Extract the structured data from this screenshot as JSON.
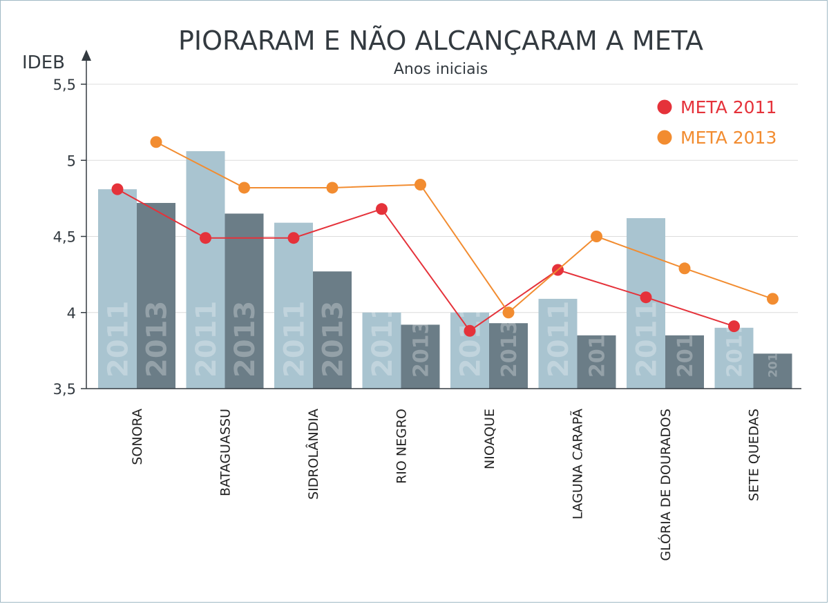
{
  "chart_data": {
    "type": "bar",
    "title": "PIORARAM E NÃO ALCANÇARAM A META",
    "subtitle": "Anos iniciais",
    "ylabel": "IDEB",
    "xlabel": "",
    "ylim": [
      3.5,
      5.5
    ],
    "yticks": [
      {
        "value": 3.5,
        "label": "3,5"
      },
      {
        "value": 4,
        "label": "4"
      },
      {
        "value": 4.5,
        "label": "4,5"
      },
      {
        "value": 5,
        "label": "5"
      },
      {
        "value": 5.5,
        "label": "5,5"
      }
    ],
    "grid": true,
    "legend_position": "top-right",
    "categories": [
      "SONORA",
      "BATAGUASSU",
      "SIDROLÂNDIA",
      "RIO NEGRO",
      "NIOAQUE",
      "LAGUNA CARAPÃ",
      "GLÓRIA DE DOURADOS",
      "SETE QUEDAS"
    ],
    "bar_series": [
      {
        "label": "2011",
        "color": "#a9c4d0",
        "values": [
          4.81,
          5.06,
          4.59,
          4.0,
          4.0,
          4.09,
          4.62,
          3.9
        ]
      },
      {
        "label": "2013",
        "color": "#6b7d87",
        "values": [
          4.72,
          4.65,
          4.27,
          3.92,
          3.93,
          3.85,
          3.85,
          3.73
        ]
      }
    ],
    "series": [
      {
        "name": "META 2011",
        "color": "#e5323a",
        "values": [
          4.81,
          4.49,
          4.49,
          4.68,
          3.88,
          4.28,
          4.1,
          3.91
        ]
      },
      {
        "name": "META 2013",
        "color": "#f28c30",
        "values": [
          5.12,
          4.82,
          4.82,
          4.84,
          4.0,
          4.5,
          4.29,
          4.09
        ]
      }
    ]
  }
}
